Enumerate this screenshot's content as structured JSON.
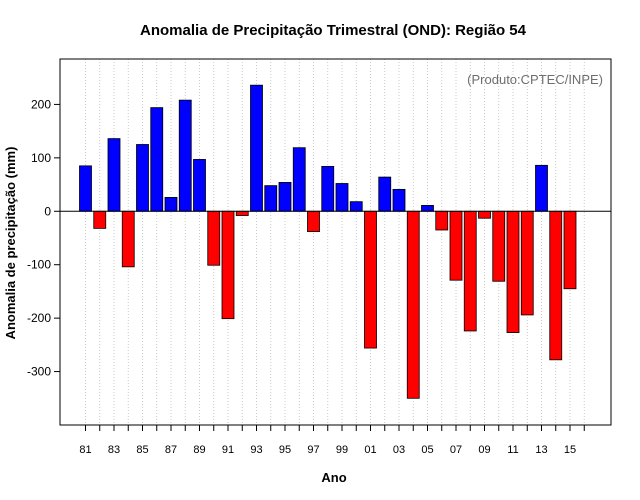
{
  "chart_data": {
    "type": "bar",
    "title": "Anomalia de Precipitação Trimestral (OND): Região 54",
    "xlabel": "Ano",
    "ylabel": "Anomalia de precipitação (mm)",
    "annotation": "(Produto:CPTEC/INPE)",
    "ylim": [
      -400,
      285
    ],
    "yticks": [
      -300,
      -200,
      -100,
      0,
      100,
      200
    ],
    "ytick_labels": [
      "-300",
      "-200",
      "-100",
      "0",
      "100",
      "200"
    ],
    "xtick_labels": [
      "81",
      "83",
      "85",
      "87",
      "89",
      "91",
      "93",
      "95",
      "97",
      "99",
      "01",
      "03",
      "05",
      "07",
      "09",
      "11",
      "13",
      "15"
    ],
    "grid": true,
    "colors": {
      "positive": "#0000ff",
      "negative": "#ff0000"
    },
    "categories": [
      "1981",
      "1982",
      "1983",
      "1984",
      "1985",
      "1986",
      "1987",
      "1988",
      "1989",
      "1990",
      "1991",
      "1992",
      "1993",
      "1994",
      "1995",
      "1996",
      "1997",
      "1998",
      "1999",
      "2000",
      "2001",
      "2002",
      "2003",
      "2004",
      "2005",
      "2006",
      "2007",
      "2008",
      "2009",
      "2010",
      "2011",
      "2012",
      "2013",
      "2014",
      "2015"
    ],
    "values": [
      85,
      -32,
      136,
      -104,
      125,
      194,
      26,
      208,
      97,
      -101,
      -201,
      -8,
      236,
      48,
      54,
      119,
      -38,
      84,
      52,
      18,
      -256,
      64,
      41,
      -350,
      11,
      -35,
      -129,
      -224,
      -13,
      -131,
      -227,
      -194,
      86,
      -278,
      -145
    ]
  }
}
